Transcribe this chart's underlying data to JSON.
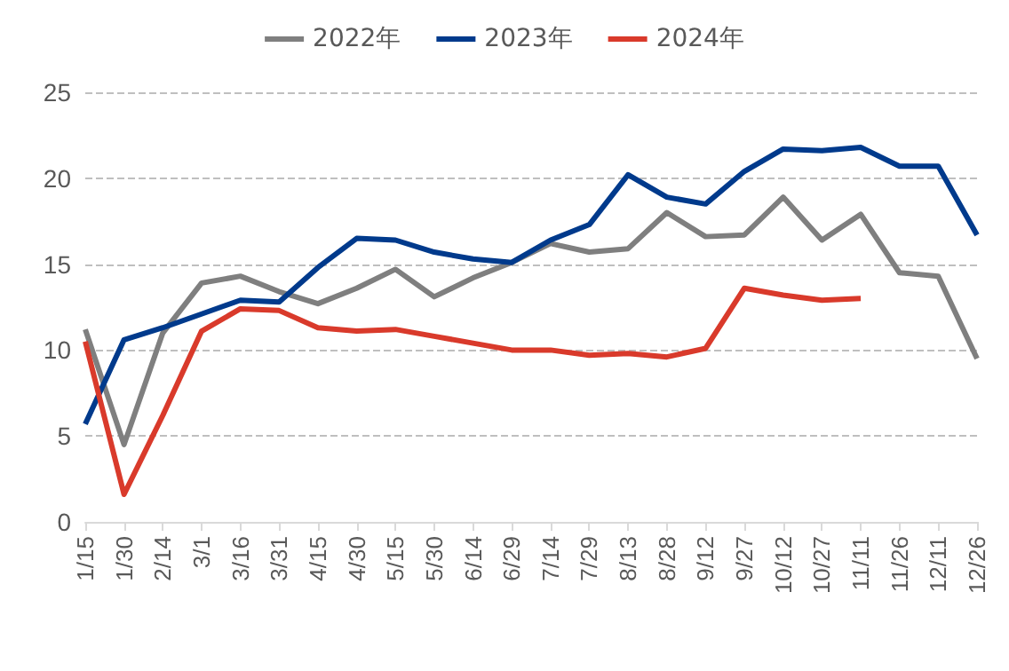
{
  "chart_data": {
    "type": "line",
    "categories": [
      "1/15",
      "1/30",
      "2/14",
      "3/1",
      "3/16",
      "3/31",
      "4/15",
      "4/30",
      "5/15",
      "5/30",
      "6/14",
      "6/29",
      "7/14",
      "7/29",
      "8/13",
      "8/28",
      "9/12",
      "9/27",
      "10/12",
      "10/27",
      "11/11",
      "11/26",
      "12/11",
      "12/26"
    ],
    "series": [
      {
        "name": "2022年",
        "color": "#7f7f7f",
        "values": [
          11.2,
          4.5,
          11,
          13.9,
          14.3,
          13.4,
          12.7,
          13.6,
          14.7,
          13.1,
          14.2,
          15.1,
          16.2,
          15.7,
          15.9,
          18,
          16.6,
          16.7,
          18.9,
          16.4,
          17.9,
          14.5,
          14.3,
          9.5
        ]
      },
      {
        "name": "2023年",
        "color": "#003a8c",
        "values": [
          5.7,
          10.6,
          11.3,
          12.1,
          12.9,
          12.8,
          14.8,
          16.5,
          16.4,
          15.7,
          15.3,
          15.1,
          16.4,
          17.3,
          20.2,
          18.9,
          18.5,
          20.4,
          21.7,
          21.6,
          21.8,
          20.7,
          20.7,
          16.7
        ]
      },
      {
        "name": "2024年",
        "color": "#d93a2b",
        "values": [
          10.5,
          1.6,
          6.2,
          11.1,
          12.4,
          12.3,
          11.3,
          11.1,
          11.2,
          10.8,
          10.4,
          10.0,
          10.0,
          9.7,
          9.8,
          9.6,
          10.1,
          13.6,
          13.2,
          12.9,
          13.0,
          null,
          null,
          null
        ]
      }
    ],
    "ylim": [
      0,
      25
    ],
    "yticks": [
      0,
      5,
      10,
      15,
      20,
      25
    ],
    "grid": "y",
    "legend": "top",
    "marker": "none",
    "line_style": "solid"
  }
}
